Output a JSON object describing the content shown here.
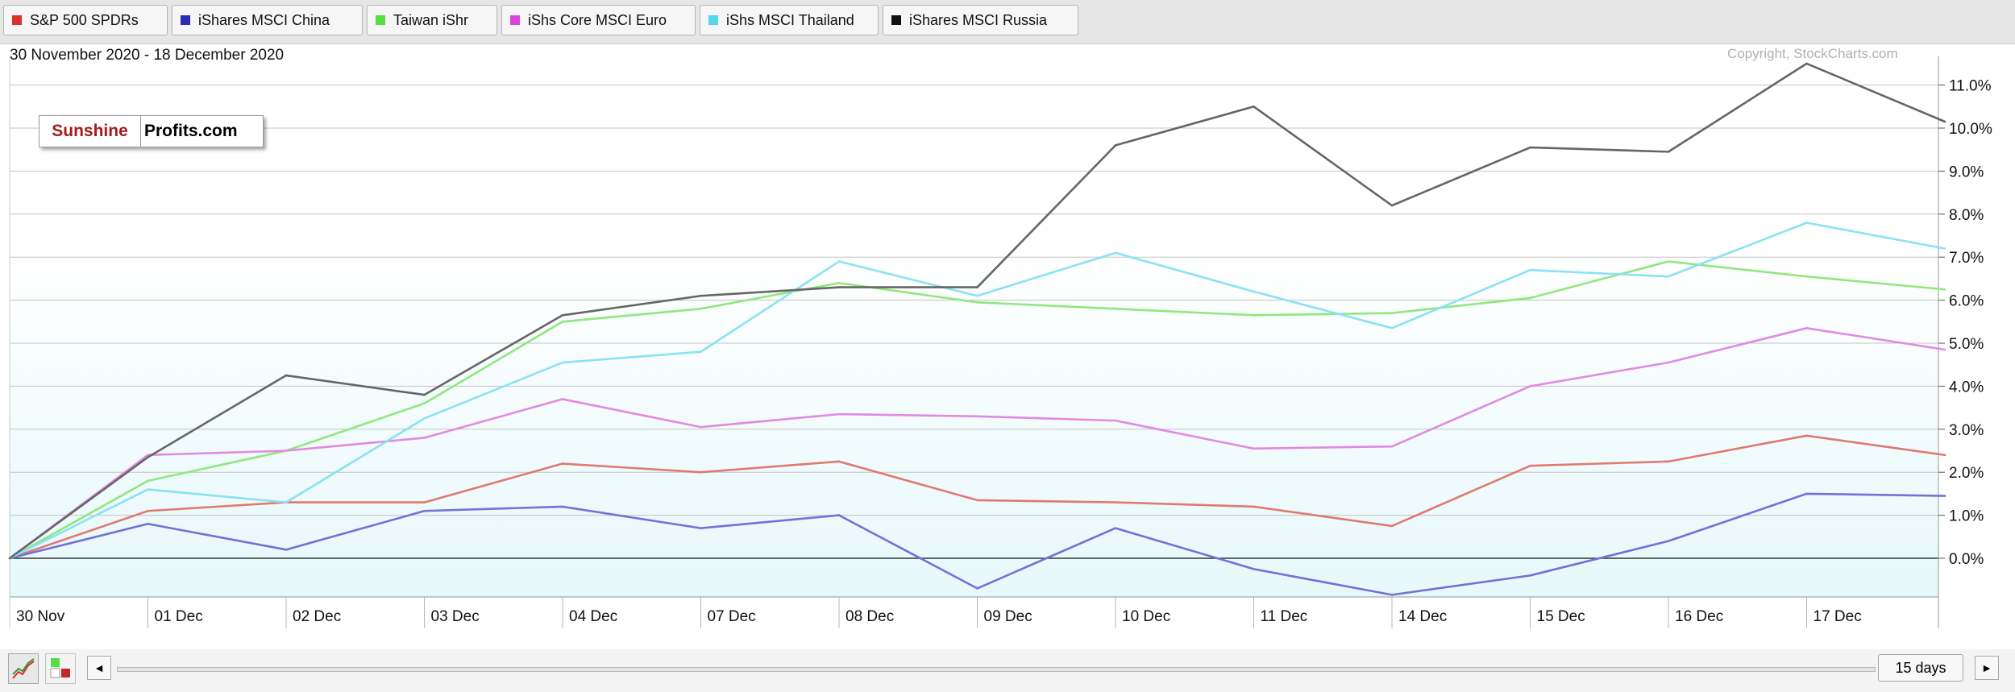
{
  "legend": [
    {
      "label": "S&P 500 SPDRs",
      "color": "#d9322c"
    },
    {
      "label": "iShares MSCI China",
      "color": "#2c2cb8"
    },
    {
      "label": "Taiwan iShr",
      "color": "#55dd45"
    },
    {
      "label": "iShs Core MSCI Euro",
      "color": "#dd44dd"
    },
    {
      "label": "iShs MSCI Thailand",
      "color": "#55d5ee"
    },
    {
      "label": "iShares MSCI Russia",
      "color": "#111111"
    }
  ],
  "date_range": "30 November 2020 - 18 December 2020",
  "copyright": "Copyright, StockCharts.com",
  "logo": {
    "part1": "Sunshine",
    "part2": "Profits.com"
  },
  "controls": {
    "chart_type_icon": "line-chart-icon",
    "heatmap_icon": "heatmap-icon",
    "scroll_left": "◄",
    "scroll_right": "►",
    "period": "15 days"
  },
  "chart_data": {
    "type": "line",
    "x": [
      "30 Nov",
      "01 Dec",
      "02 Dec",
      "03 Dec",
      "04 Dec",
      "07 Dec",
      "08 Dec",
      "09 Dec",
      "10 Dec",
      "11 Dec",
      "14 Dec",
      "15 Dec",
      "16 Dec",
      "17 Dec",
      "18 Dec"
    ],
    "x_tick_labels": [
      "30 Nov",
      "01 Dec",
      "02 Dec",
      "03 Dec",
      "04 Dec",
      "07 Dec",
      "08 Dec",
      "09 Dec",
      "10 Dec",
      "11 Dec",
      "14 Dec",
      "15 Dec",
      "16 Dec",
      "17 Dec"
    ],
    "y_ticks": [
      0,
      1,
      2,
      3,
      4,
      5,
      6,
      7,
      8,
      9,
      10,
      11
    ],
    "y_tick_labels": [
      "0.0%",
      "1.0%",
      "2.0%",
      "3.0%",
      "4.0%",
      "5.0%",
      "6.0%",
      "7.0%",
      "8.0%",
      "9.0%",
      "10.0%",
      "11.0%"
    ],
    "ylim": [
      -0.9,
      11.6
    ],
    "y_axis_side": "right",
    "grid": true,
    "series": [
      {
        "name": "S&P 500 SPDRs",
        "color": "#e07a70",
        "values": [
          0,
          1.1,
          1.3,
          1.3,
          2.2,
          2.0,
          2.25,
          1.35,
          1.3,
          1.2,
          0.75,
          2.15,
          2.25,
          2.85,
          2.4
        ]
      },
      {
        "name": "iShares MSCI China",
        "color": "#7272d8",
        "values": [
          0,
          0.8,
          0.2,
          1.1,
          1.2,
          0.7,
          1.0,
          -0.7,
          0.7,
          -0.25,
          -0.85,
          -0.4,
          0.4,
          1.5,
          1.45
        ]
      },
      {
        "name": "Taiwan iShr",
        "color": "#8ee87e",
        "values": [
          0,
          1.8,
          2.5,
          3.6,
          5.5,
          5.8,
          6.4,
          5.95,
          5.8,
          5.65,
          5.7,
          6.05,
          6.9,
          6.55,
          6.25
        ]
      },
      {
        "name": "iShs Core MSCI Euro",
        "color": "#e28ae2",
        "values": [
          0,
          2.4,
          2.5,
          2.8,
          3.7,
          3.05,
          3.35,
          3.3,
          3.2,
          2.55,
          2.6,
          4.0,
          4.55,
          5.35,
          4.85
        ]
      },
      {
        "name": "iShs MSCI Thailand",
        "color": "#8ae2f2",
        "values": [
          0,
          1.6,
          1.3,
          3.25,
          4.55,
          4.8,
          6.9,
          6.1,
          7.1,
          6.2,
          5.35,
          6.7,
          6.55,
          7.8,
          7.2
        ]
      },
      {
        "name": "iShares MSCI Russia",
        "color": "#666666",
        "values": [
          0,
          2.35,
          4.25,
          3.8,
          5.65,
          6.1,
          6.3,
          6.3,
          9.6,
          10.5,
          8.2,
          9.55,
          9.45,
          11.5,
          10.15
        ]
      }
    ]
  }
}
